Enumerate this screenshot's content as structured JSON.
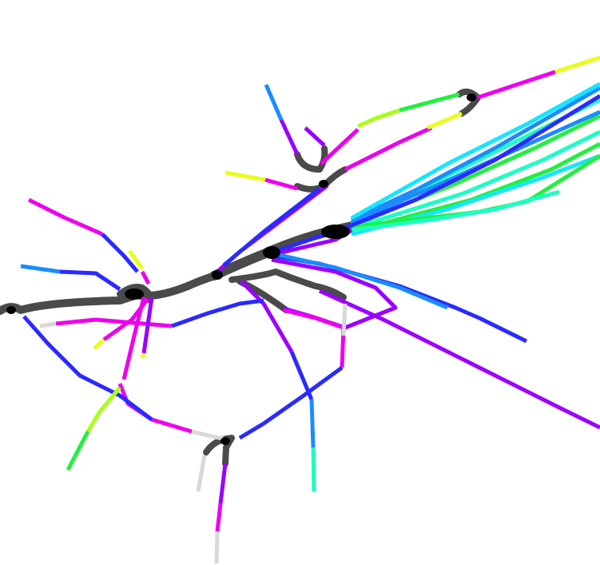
{
  "map": {
    "background": "#ffffff",
    "trunk_color": "#4a4a4a",
    "hub_color": "#000000",
    "legend_entries": [],
    "title": "",
    "line_colors": {
      "magenta": "#ee00ee",
      "violet": "#9a00ff",
      "blue": "#2a2aff",
      "azure": "#1a8cff",
      "cyan": "#14e6ff",
      "aqua": "#1affc4",
      "green": "#22f040",
      "lime": "#a8ff1a",
      "yellow": "#e8ff1a",
      "grey": "#d8d8d8"
    }
  }
}
